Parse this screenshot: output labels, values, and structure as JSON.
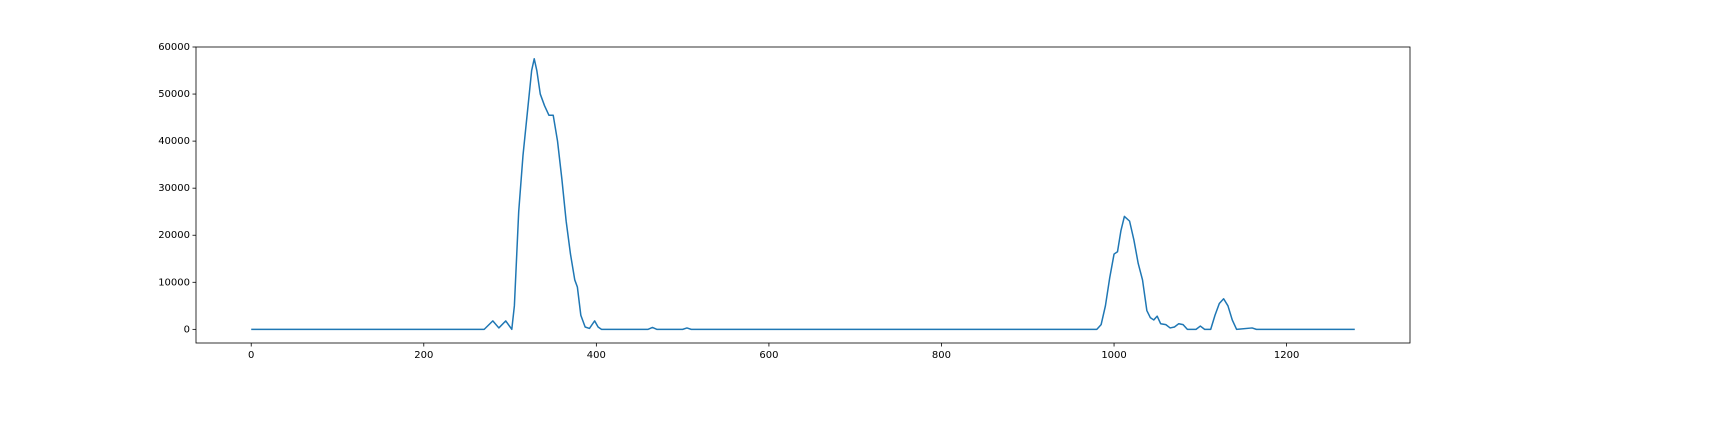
{
  "chart_data": {
    "type": "line",
    "x": [
      0,
      240,
      270,
      280,
      287,
      295,
      302,
      305,
      310,
      315,
      320,
      325,
      328,
      331,
      335,
      340,
      345,
      350,
      355,
      360,
      365,
      370,
      375,
      378,
      382,
      387,
      392,
      398,
      402,
      406,
      460,
      465,
      470,
      500,
      505,
      510,
      980,
      985,
      990,
      995,
      1000,
      1004,
      1008,
      1012,
      1018,
      1023,
      1028,
      1033,
      1038,
      1042,
      1046,
      1050,
      1054,
      1060,
      1065,
      1070,
      1075,
      1080,
      1085,
      1095,
      1100,
      1105,
      1112,
      1117,
      1122,
      1127,
      1132,
      1137,
      1142,
      1160,
      1165,
      1279
    ],
    "values": [
      0,
      0,
      0,
      1800,
      300,
      1800,
      0,
      5000,
      25000,
      37000,
      46000,
      55000,
      57500,
      55000,
      50000,
      47500,
      45500,
      45500,
      40000,
      32000,
      23000,
      16000,
      10500,
      9000,
      3000,
      500,
      200,
      1800,
      500,
      0,
      0,
      400,
      0,
      0,
      300,
      0,
      0,
      1000,
      5000,
      11000,
      16000,
      16500,
      21000,
      24000,
      23000,
      19000,
      14000,
      10500,
      4000,
      2500,
      2000,
      2800,
      1200,
      1000,
      300,
      500,
      1200,
      1000,
      0,
      0,
      700,
      0,
      0,
      3000,
      5500,
      6500,
      5000,
      2000,
      0,
      300,
      0,
      0
    ],
    "color": "#1f77b4",
    "xlim": [
      -64,
      1343
    ],
    "ylim": [
      -2900,
      60000
    ],
    "xticks": [
      0,
      200,
      400,
      600,
      800,
      1000,
      1200
    ],
    "yticks": [
      0,
      10000,
      20000,
      30000,
      40000,
      50000,
      60000
    ]
  }
}
